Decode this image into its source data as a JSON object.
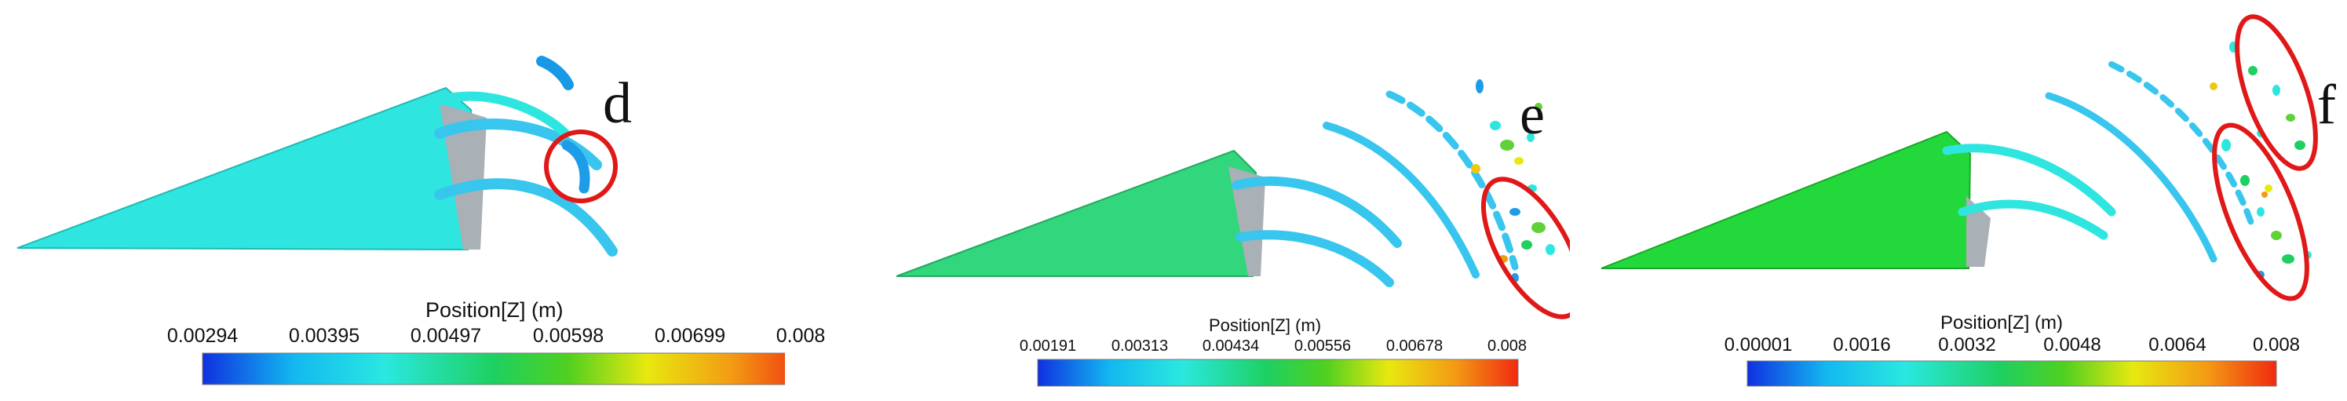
{
  "panels": [
    {
      "letter": "d",
      "colorbar": {
        "title": "Position[Z] (m)",
        "ticks": [
          "0.00294",
          "0.00395",
          "0.00497",
          "0.00598",
          "0.00699",
          "0.008"
        ]
      },
      "fill_color": "#2ee6df"
    },
    {
      "letter": "e",
      "colorbar": {
        "title": "Position[Z] (m)",
        "ticks": [
          "0.00191",
          "0.00313",
          "0.00434",
          "0.00556",
          "0.00678",
          "0.008"
        ]
      },
      "fill_color": "#32d67c"
    },
    {
      "letter": "f",
      "colorbar": {
        "title": "Position[Z] (m)",
        "ticks": [
          "0.00001",
          "0.0016",
          "0.0032",
          "0.0048",
          "0.0064",
          "0.008"
        ]
      },
      "fill_color": "#22d83a"
    }
  ],
  "colors": {
    "highlight_ellipse": "#e01818",
    "colormap": [
      "#1030e0",
      "#13b8f0",
      "#2ae8e0",
      "#1ed060",
      "#50d020",
      "#e8e810",
      "#f39a14",
      "#f02a10"
    ]
  }
}
